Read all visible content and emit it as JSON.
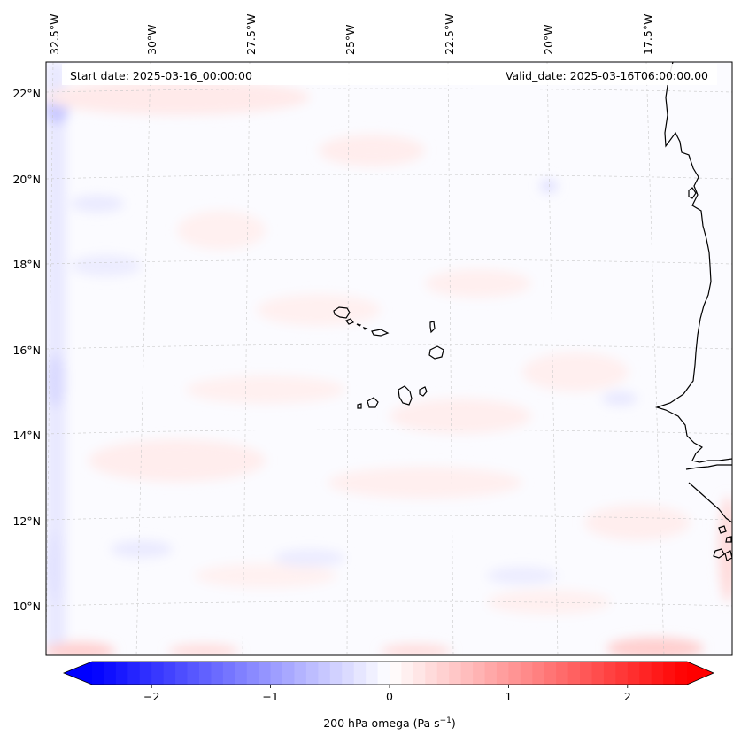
{
  "map": {
    "start_date_label": "Start date: 2025-03-16_00:00:00",
    "valid_date_label": "Valid_date: 2025-03-16T06:00:00.00",
    "lon_ticks": [
      {
        "lon": -32.5,
        "label": "32.5°W"
      },
      {
        "lon": -30.0,
        "label": "30°W"
      },
      {
        "lon": -27.5,
        "label": "27.5°W"
      },
      {
        "lon": -25.0,
        "label": "25°W"
      },
      {
        "lon": -22.5,
        "label": "22.5°W"
      },
      {
        "lon": -20.0,
        "label": "20°W"
      },
      {
        "lon": -17.5,
        "label": "17.5°W"
      }
    ],
    "lat_ticks": [
      {
        "lat": 22,
        "label": "22°N"
      },
      {
        "lat": 20,
        "label": "20°N"
      },
      {
        "lat": 18,
        "label": "18°N"
      },
      {
        "lat": 16,
        "label": "16°N"
      },
      {
        "lat": 14,
        "label": "14°N"
      },
      {
        "lat": 12,
        "label": "12°N"
      },
      {
        "lat": 10,
        "label": "10°N"
      }
    ],
    "colors": {
      "negative": "#0000ff",
      "zero": "#ffffff",
      "positive": "#ff0000",
      "coastline": "#000000",
      "gridline": "#c8c8c8"
    }
  },
  "colorbar": {
    "min": -2.75,
    "max": 2.75,
    "ticks": [
      {
        "value": -2,
        "label": "−2"
      },
      {
        "value": -1,
        "label": "−1"
      },
      {
        "value": 0,
        "label": "0"
      },
      {
        "value": 1,
        "label": "1"
      },
      {
        "value": 2,
        "label": "2"
      }
    ],
    "label": "200 hPa omega (Pa s",
    "label_sup": "−1",
    "label_end": ")"
  }
}
